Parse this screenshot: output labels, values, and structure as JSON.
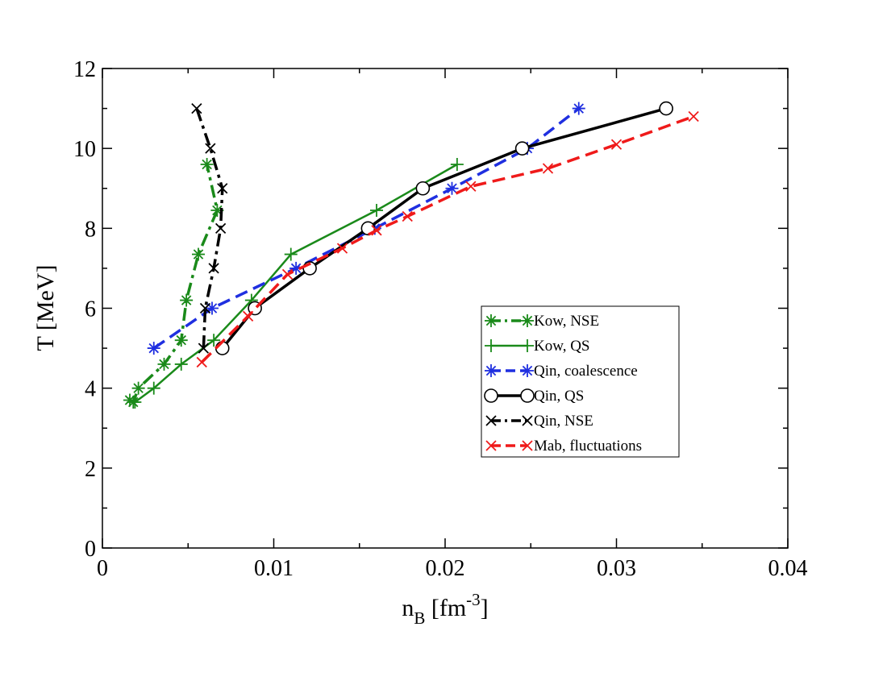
{
  "chart_data": {
    "type": "line",
    "title": "",
    "xlabel": {
      "main": "n",
      "sub": "B",
      "unit_open": " [fm",
      "sup": "-3",
      "unit_close": "]"
    },
    "ylabel": "T [MeV]",
    "xlim": [
      0,
      0.04
    ],
    "ylim": [
      0,
      12
    ],
    "xticks": [
      0,
      0.01,
      0.02,
      0.03,
      0.04
    ],
    "xtick_labels": [
      "0",
      "0.01",
      "0.02",
      "0.03",
      "0.04"
    ],
    "yticks": [
      0,
      2,
      4,
      6,
      8,
      10,
      12
    ],
    "ytick_labels": [
      "0",
      "2",
      "4",
      "6",
      "8",
      "10",
      "12"
    ],
    "legend_position": "center-right",
    "series": [
      {
        "name": "Kow, NSE",
        "color": "#1a8a1a",
        "dash": "dashdot",
        "width": 3.5,
        "marker": "asterisk",
        "points": [
          [
            0.0016,
            3.7
          ],
          [
            0.0018,
            3.65
          ],
          [
            0.0021,
            4.0
          ],
          [
            0.0036,
            4.6
          ],
          [
            0.0046,
            5.2
          ],
          [
            0.0049,
            6.2
          ],
          [
            0.0056,
            7.35
          ],
          [
            0.0067,
            8.45
          ],
          [
            0.0061,
            9.6
          ]
        ]
      },
      {
        "name": "Kow, QS",
        "color": "#1a8a1a",
        "dash": "solid",
        "width": 2.5,
        "marker": "plus",
        "points": [
          [
            0.0019,
            3.65
          ],
          [
            0.003,
            4.0
          ],
          [
            0.0046,
            4.6
          ],
          [
            0.0065,
            5.2
          ],
          [
            0.0087,
            6.2
          ],
          [
            0.011,
            7.35
          ],
          [
            0.016,
            8.45
          ],
          [
            0.0207,
            9.6
          ]
        ]
      },
      {
        "name": "Qin, coalescence",
        "color": "#1f2fe0",
        "dash": "dashed",
        "width": 3.5,
        "marker": "asterisk",
        "points": [
          [
            0.003,
            5.0
          ],
          [
            0.0064,
            6.0
          ],
          [
            0.0113,
            7.0
          ],
          [
            0.0159,
            8.0
          ],
          [
            0.0204,
            9.0
          ],
          [
            0.0248,
            10.0
          ],
          [
            0.0278,
            11.0
          ]
        ]
      },
      {
        "name": "Qin, QS",
        "color": "#000000",
        "dash": "solid",
        "width": 3.5,
        "marker": "circle",
        "points": [
          [
            0.007,
            5.0
          ],
          [
            0.0089,
            6.0
          ],
          [
            0.0121,
            7.0
          ],
          [
            0.0155,
            8.0
          ],
          [
            0.0187,
            9.0
          ],
          [
            0.0245,
            10.0
          ],
          [
            0.0329,
            11.0
          ]
        ]
      },
      {
        "name": "Qin, NSE",
        "color": "#000000",
        "dash": "dashdot",
        "width": 3.5,
        "marker": "x",
        "points": [
          [
            0.0059,
            5.0
          ],
          [
            0.006,
            6.0
          ],
          [
            0.0065,
            7.0
          ],
          [
            0.0069,
            8.0
          ],
          [
            0.007,
            9.0
          ],
          [
            0.0063,
            10.0
          ],
          [
            0.0055,
            11.0
          ]
        ]
      },
      {
        "name": "Mab, fluctuations",
        "color": "#ef1a1a",
        "dash": "dashed",
        "width": 3.5,
        "marker": "x",
        "points": [
          [
            0.0058,
            4.65
          ],
          [
            0.0085,
            5.8
          ],
          [
            0.0108,
            6.85
          ],
          [
            0.014,
            7.5
          ],
          [
            0.016,
            7.95
          ],
          [
            0.0178,
            8.3
          ],
          [
            0.0215,
            9.05
          ],
          [
            0.026,
            9.5
          ],
          [
            0.03,
            10.1
          ],
          [
            0.0345,
            10.8
          ]
        ]
      }
    ]
  }
}
